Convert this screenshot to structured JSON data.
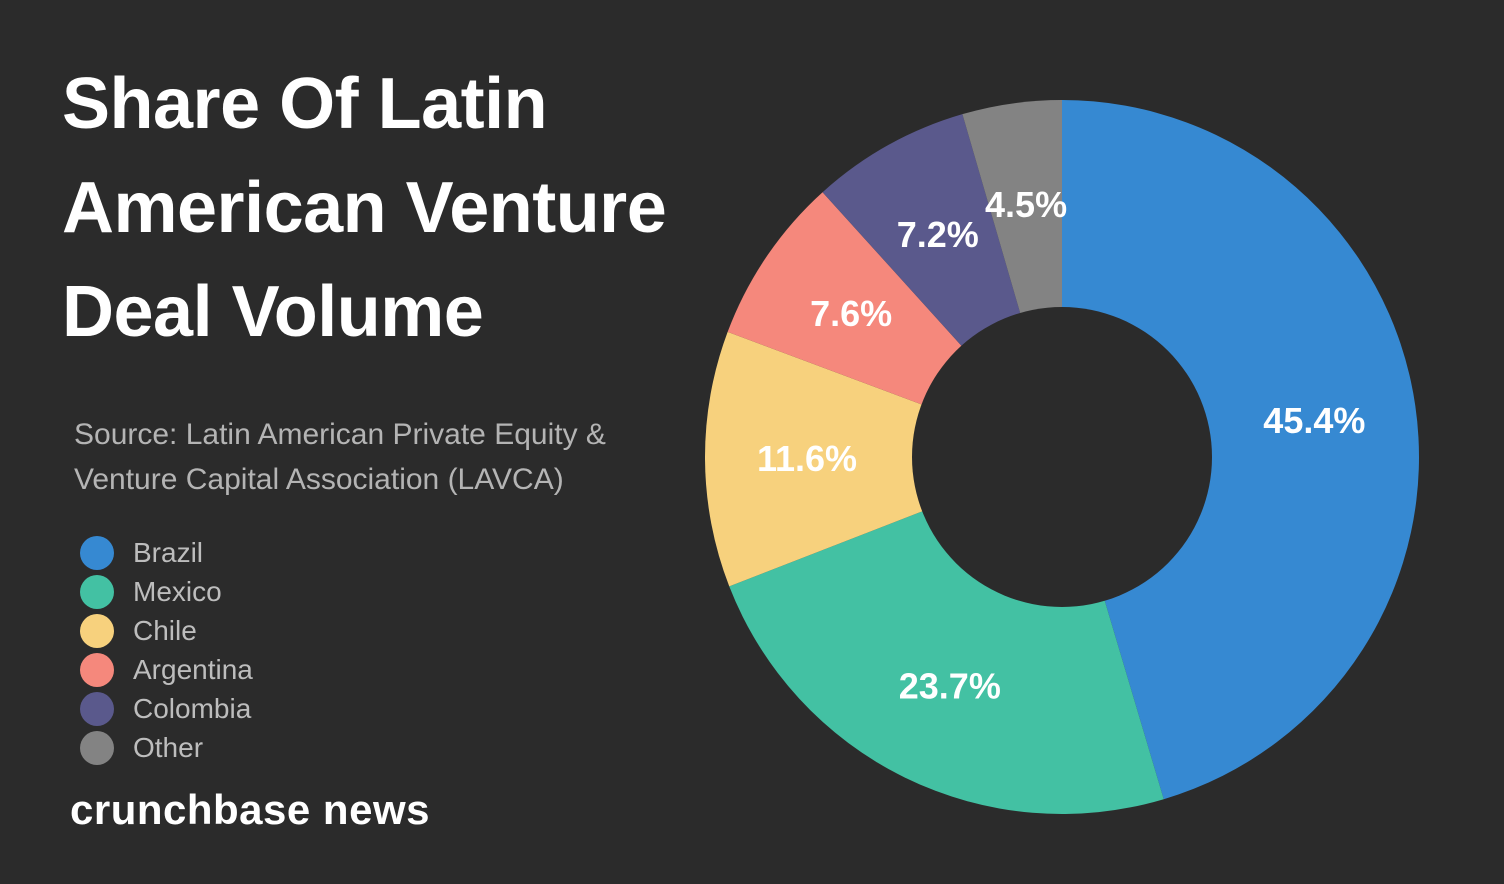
{
  "title": "Share Of Latin American Venture Deal Volume",
  "title_lines": [
    "Share Of Latin",
    "American Venture",
    "Deal Volume"
  ],
  "source_lines": [
    "Source: Latin American Private Equity &",
    "Venture Capital Association (LAVCA)"
  ],
  "brand": "crunchbase news",
  "background_color": "#2b2b2b",
  "chart_data": {
    "type": "pie",
    "style": "donut",
    "title": "Share Of Latin American Venture Deal Volume",
    "categories": [
      "Brazil",
      "Mexico",
      "Chile",
      "Argentina",
      "Colombia",
      "Other"
    ],
    "values": [
      45.4,
      23.7,
      11.6,
      7.6,
      7.2,
      4.5
    ],
    "labels": [
      "45.4%",
      "23.7%",
      "11.6%",
      "7.6%",
      "7.2%",
      "4.5%"
    ],
    "colors": [
      "#3689d2",
      "#43c1a3",
      "#f7d17d",
      "#f5887c",
      "#5a598c",
      "#838383"
    ],
    "unit": "%",
    "start_angle": "12 o'clock",
    "direction": "clockwise",
    "legend_position": "left"
  }
}
